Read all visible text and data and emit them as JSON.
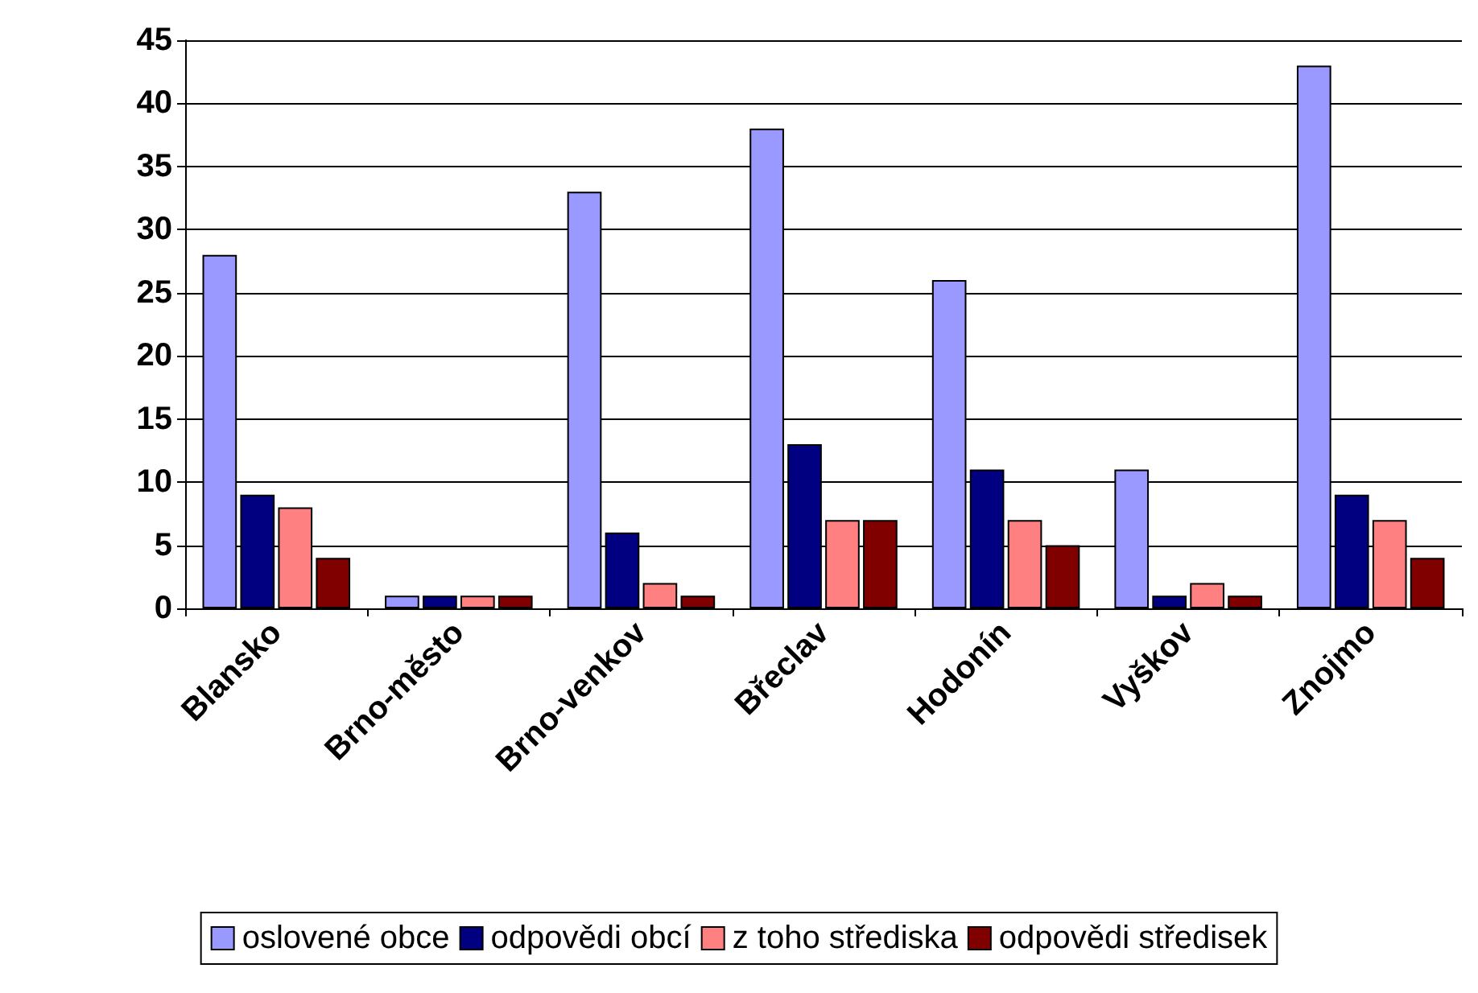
{
  "chart_data": {
    "type": "bar",
    "categories": [
      "Blansko",
      "Brno-město",
      "Brno-venkov",
      "Břeclav",
      "Hodonín",
      "Vyškov",
      "Znojmo"
    ],
    "series": [
      {
        "name": "oslovené obce",
        "color": "#9999ff",
        "values": [
          28,
          1,
          33,
          38,
          26,
          11,
          43
        ]
      },
      {
        "name": "odpovědi obcí",
        "color": "#000080",
        "values": [
          9,
          1,
          6,
          13,
          11,
          1,
          9
        ]
      },
      {
        "name": "z toho střediska",
        "color": "#ff8080",
        "values": [
          8,
          1,
          2,
          7,
          7,
          2,
          7
        ]
      },
      {
        "name": "odpovědi středisek",
        "color": "#800000",
        "values": [
          4,
          1,
          1,
          7,
          5,
          1,
          4
        ]
      }
    ],
    "ylim": [
      0,
      45
    ],
    "yticks": [
      0,
      5,
      10,
      15,
      20,
      25,
      30,
      35,
      40,
      45
    ],
    "grid": "y",
    "legend": "bottom"
  }
}
